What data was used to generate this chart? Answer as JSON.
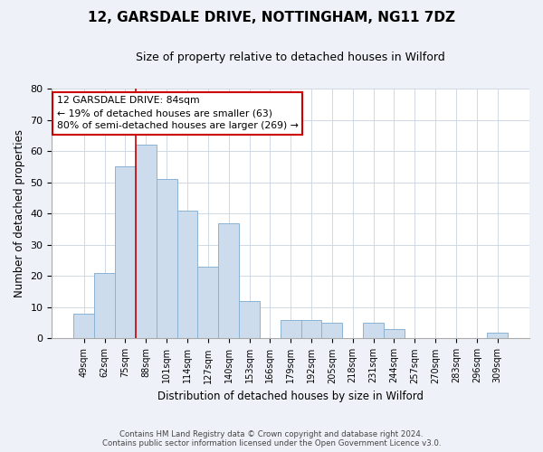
{
  "title": "12, GARSDALE DRIVE, NOTTINGHAM, NG11 7DZ",
  "subtitle": "Size of property relative to detached houses in Wilford",
  "xlabel": "Distribution of detached houses by size in Wilford",
  "ylabel": "Number of detached properties",
  "categories": [
    "49sqm",
    "62sqm",
    "75sqm",
    "88sqm",
    "101sqm",
    "114sqm",
    "127sqm",
    "140sqm",
    "153sqm",
    "166sqm",
    "179sqm",
    "192sqm",
    "205sqm",
    "218sqm",
    "231sqm",
    "244sqm",
    "257sqm",
    "270sqm",
    "283sqm",
    "296sqm",
    "309sqm"
  ],
  "values": [
    8,
    21,
    55,
    62,
    51,
    41,
    23,
    37,
    12,
    0,
    6,
    6,
    5,
    0,
    5,
    3,
    0,
    0,
    0,
    0,
    2
  ],
  "bar_color": "#ccdcec",
  "bar_edge_color": "#8ab4d4",
  "vline_color": "#cc0000",
  "ylim": [
    0,
    80
  ],
  "yticks": [
    0,
    10,
    20,
    30,
    40,
    50,
    60,
    70,
    80
  ],
  "annotation_line1": "12 GARSDALE DRIVE: 84sqm",
  "annotation_line2": "← 19% of detached houses are smaller (63)",
  "annotation_line3": "80% of semi-detached houses are larger (269) →",
  "annotation_box_color": "#ffffff",
  "annotation_box_edge_color": "#cc0000",
  "footer_line1": "Contains HM Land Registry data © Crown copyright and database right 2024.",
  "footer_line2": "Contains public sector information licensed under the Open Government Licence v3.0.",
  "background_color": "#eef2f8",
  "plot_background_color": "#ffffff",
  "grid_color": "#d0d8e4"
}
